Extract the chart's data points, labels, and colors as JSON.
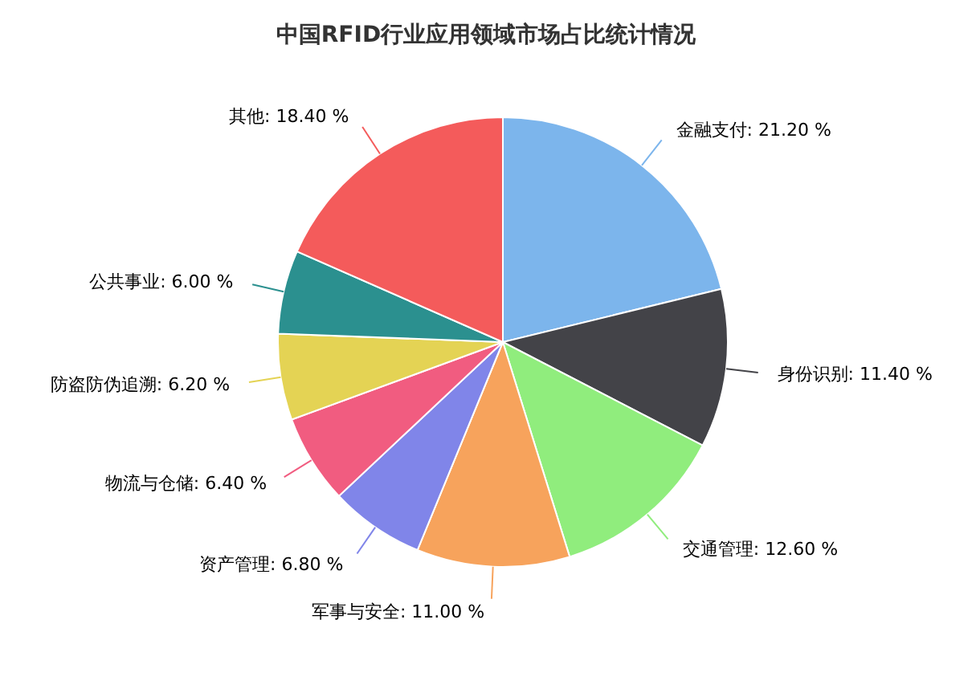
{
  "chart_data": {
    "type": "pie",
    "title": "中国RFID行业应用领域市场占比统计情况",
    "categories": [
      "金融支付",
      "身份识别",
      "交通管理",
      "军事与安全",
      "资产管理",
      "物流与仓储",
      "防盗防伪追溯",
      "公共事业",
      "其他"
    ],
    "values": [
      21.2,
      11.4,
      12.6,
      11.0,
      6.8,
      6.4,
      6.2,
      6.0,
      18.4
    ],
    "value_labels": [
      "21.20 %",
      "11.40 %",
      "12.60 %",
      "11.00 %",
      "6.80 %",
      "6.40 %",
      "6.20 %",
      "6.00 %",
      "18.40 %"
    ],
    "colors": [
      "#7cb5ec",
      "#434348",
      "#90ed7d",
      "#f7a35c",
      "#8085e9",
      "#f15c80",
      "#e4d354",
      "#2b908f",
      "#f45b5b"
    ]
  }
}
